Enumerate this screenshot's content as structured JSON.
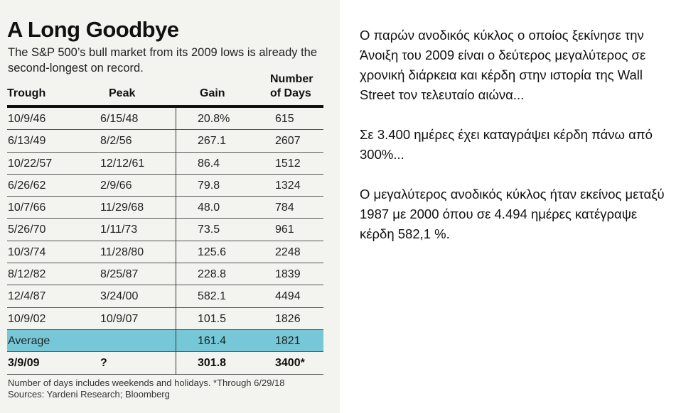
{
  "title": "A Long Goodbye",
  "subtitle": "The S&P 500’s bull market from its 2009 lows is already the second-longest on record.",
  "headers": {
    "trough": "Trough",
    "peak": "Peak",
    "gain": "Gain",
    "days_1": "Number",
    "days_2": "of Days"
  },
  "rows": [
    [
      "10/9/46",
      "6/15/48",
      "20.8%",
      "615"
    ],
    [
      "6/13/49",
      "8/2/56",
      "267.1",
      "2607"
    ],
    [
      "10/22/57",
      "12/12/61",
      "86.4",
      "1512"
    ],
    [
      "6/26/62",
      "2/9/66",
      "79.8",
      "1324"
    ],
    [
      "10/7/66",
      "11/29/68",
      "48.0",
      "784"
    ],
    [
      "5/26/70",
      "1/11/73",
      "73.5",
      "961"
    ],
    [
      "10/3/74",
      "11/28/80",
      "125.6",
      "2248"
    ],
    [
      "8/12/82",
      "8/25/87",
      "228.8",
      "1839"
    ],
    [
      "12/4/87",
      "3/24/00",
      "582.1",
      "4494"
    ],
    [
      "10/9/02",
      "10/9/07",
      "101.5",
      "1826"
    ]
  ],
  "average": {
    "label": "Average",
    "gain": "161.4",
    "days": "1821"
  },
  "current": {
    "trough": "3/9/09",
    "peak": "?",
    "gain": "301.8",
    "days": "3400*"
  },
  "notes": [
    "Number of days includes weekends and holidays. *Through 6/29/18",
    "Sources: Yardeni Research; Bloomberg"
  ],
  "commentary": [
    "Ο παρών ανοδικός κύκλος ο οποίος ξεκίνησε την Άνοιξη του 2009 είναι ο δεύτερος μεγαλύτερος σε χρονική διάρκεια και κέρδη στην ιστορία της Wall Street τον τελευταίο αιώνα...",
    "Σε 3.400 ημέρες έχει καταγράψει κέρδη πάνω από 300%...",
    "Ο μεγαλύτερος ανοδικός κύκλος ήταν εκείνος μεταξύ 1987 με 2000 όπου σε 4.494 ημέρες κατέγραψε κέρδη 582,1 %."
  ]
}
